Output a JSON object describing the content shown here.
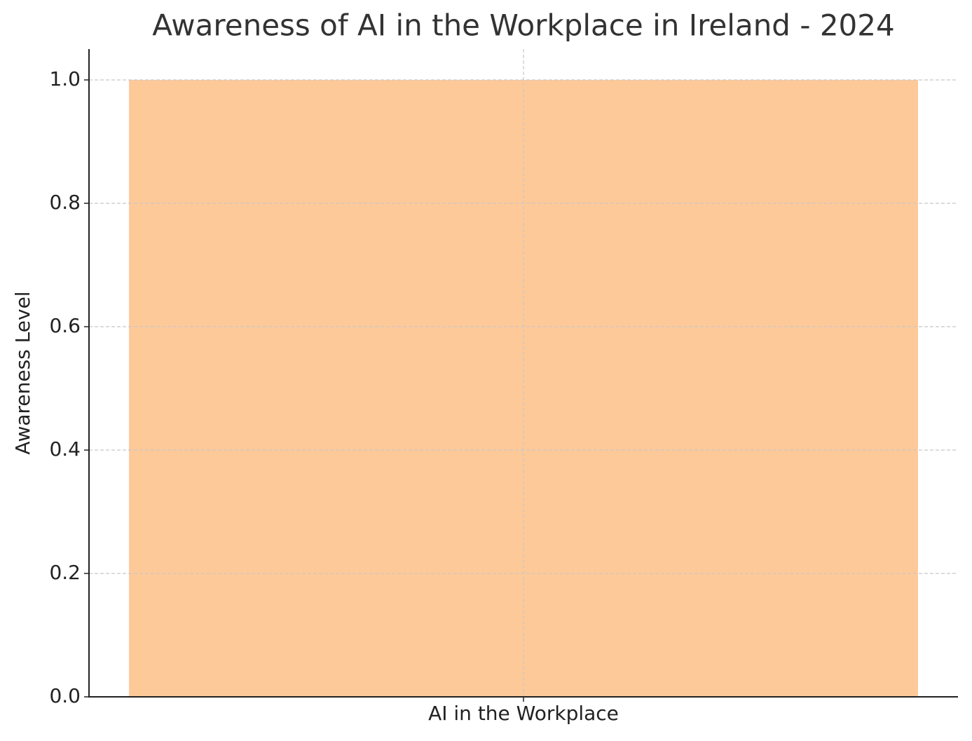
{
  "chart_data": {
    "type": "bar",
    "title": "Awareness of AI in the Workplace in Ireland - 2024",
    "y_label": "Awareness Level",
    "categories": [
      "AI in the Workplace"
    ],
    "values": [
      1.0
    ],
    "color": "#fec998",
    "ylim": [
      0,
      1.05
    ],
    "yticks": [
      {
        "value": 0,
        "label": "0.0"
      },
      0.2,
      0.4,
      0.6,
      0.8,
      {
        "value": 1,
        "label": "1.0"
      }
    ],
    "grid": true
  }
}
